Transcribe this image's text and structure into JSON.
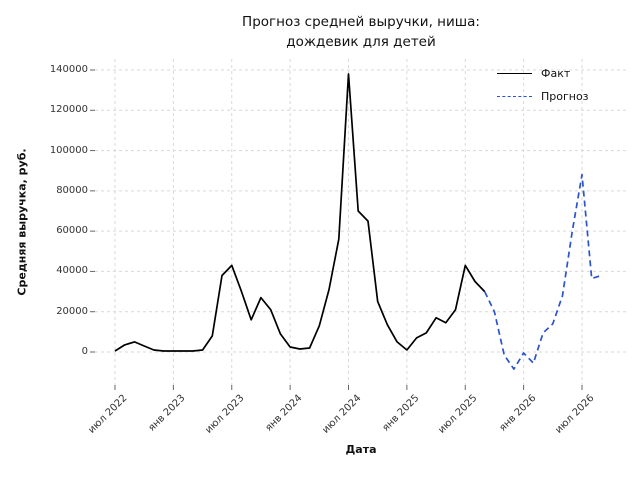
{
  "chart_data": {
    "type": "line",
    "title_lines": [
      "Прогноз средней выручки, ниша:",
      "дождевик для детей"
    ],
    "xlabel": "Дата",
    "ylabel": "Средняя выручка, руб.",
    "x_unit": "month",
    "x_tick_labels": [
      "июл 2022",
      "янв 2023",
      "июл 2023",
      "янв 2024",
      "июл 2024",
      "янв 2025",
      "июл 2025",
      "янв 2026",
      "июл 2026"
    ],
    "x_tick_month_index": [
      0,
      6,
      12,
      18,
      24,
      30,
      36,
      42,
      48
    ],
    "y_tick_values": [
      0,
      20000,
      40000,
      60000,
      80000,
      100000,
      120000,
      140000
    ],
    "ylim": [
      -16500,
      145000
    ],
    "xlim_month_index": [
      -2.1,
      52.6
    ],
    "grid": true,
    "grid_style": "dashed",
    "legend_position": "upper right",
    "series": [
      {
        "name": "Факт",
        "color": "#000000",
        "line_style": "solid",
        "start_month": "2022-07",
        "end_month": "2025-09",
        "start_month_index": 0,
        "values": [
          500,
          3500,
          5000,
          3000,
          1000,
          500,
          500,
          500,
          500,
          1000,
          8000,
          38000,
          43000,
          30000,
          16000,
          27000,
          21000,
          9000,
          2500,
          1500,
          2000,
          13000,
          31000,
          56000,
          138000,
          70000,
          65000,
          25000,
          13500,
          5000,
          1000,
          7000,
          9500,
          17000,
          14500,
          21000,
          43000,
          35000,
          30000
        ]
      },
      {
        "name": "Прогноз",
        "color": "#2b54cc",
        "line_style": "dashed",
        "start_month": "2025-09",
        "end_month": "2026-09",
        "start_month_index": 38,
        "values": [
          30000,
          20000,
          -1500,
          -8500,
          -500,
          -5500,
          9500,
          14000,
          28000,
          60000,
          88000,
          36500,
          38000
        ]
      }
    ]
  },
  "style": {
    "grid_color": "#d9d9d9",
    "tick_mark_color": "#666666",
    "tick_text_color": "#333333",
    "background": "#ffffff"
  }
}
